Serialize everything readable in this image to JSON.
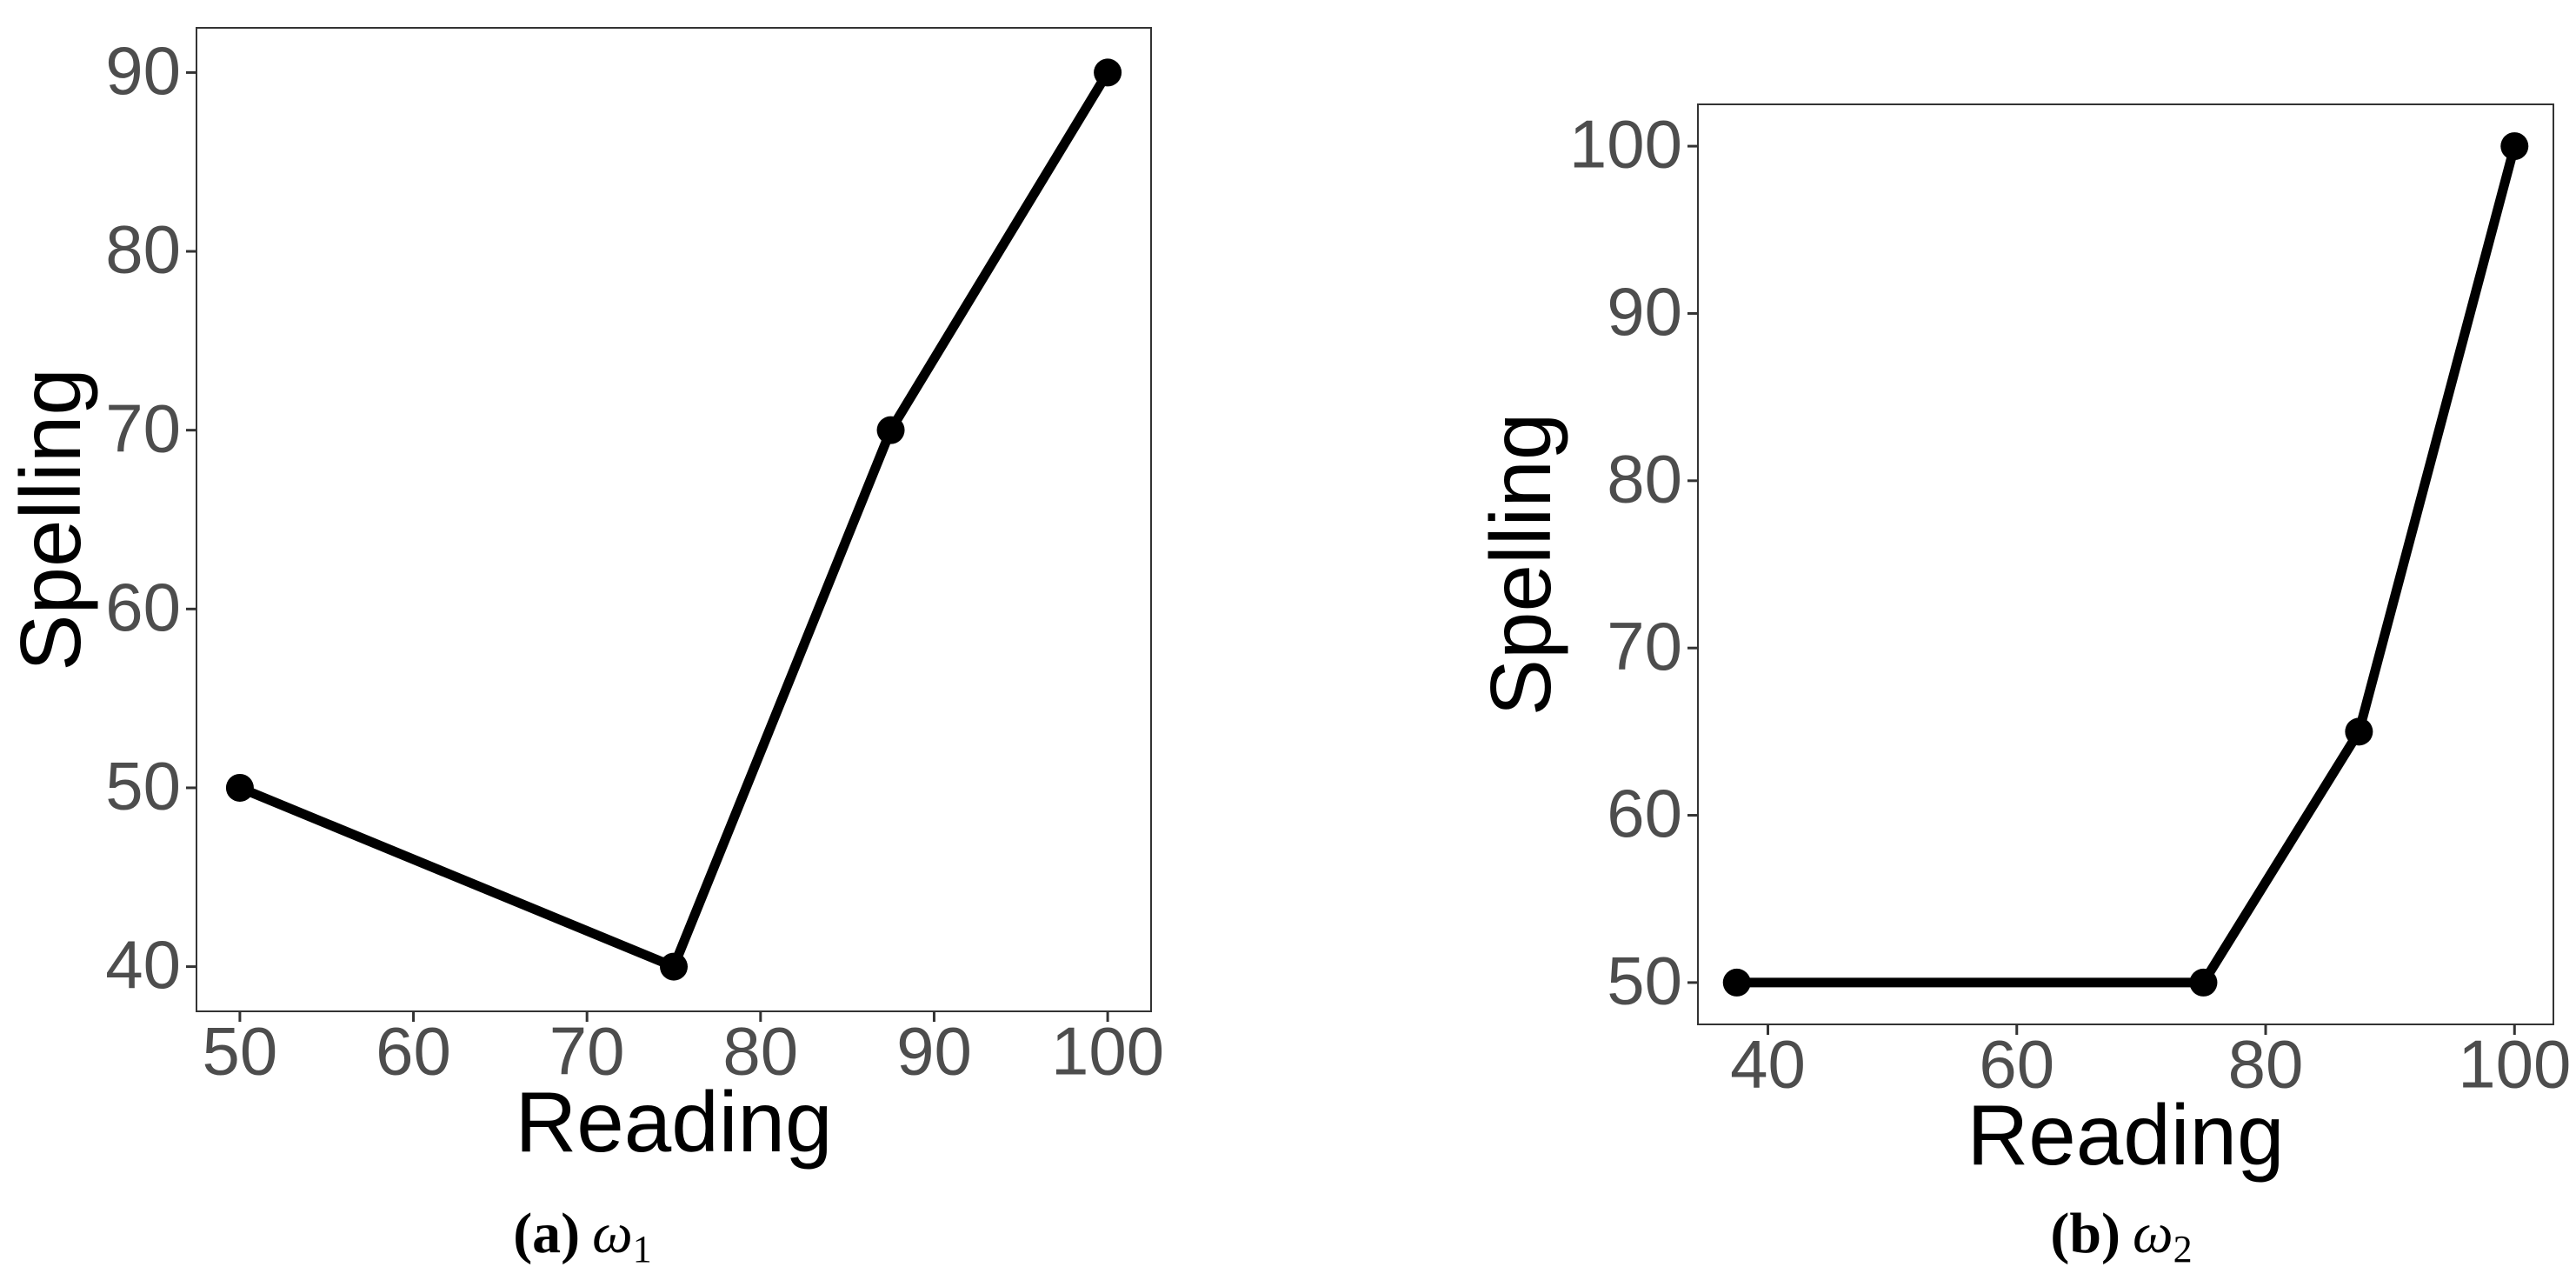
{
  "chart_data": [
    {
      "type": "line",
      "x_label": "Reading",
      "y_label": "Spelling",
      "caption_label": "(a)",
      "caption_symbol": "ω",
      "caption_subscript": "1",
      "x": [
        50,
        75,
        87.5,
        100
      ],
      "series": [
        {
          "color": "#000000",
          "values": [
            50,
            40,
            70,
            90
          ]
        }
      ],
      "xlim": [
        47.5,
        102.5
      ],
      "xticks": [
        50,
        60,
        70,
        80,
        90,
        100
      ],
      "ylim": [
        37.5,
        92.5
      ],
      "yticks": [
        40,
        50,
        60,
        70,
        80,
        90
      ],
      "grid": false
    },
    {
      "type": "line",
      "x_label": "Reading",
      "y_label": "Spelling",
      "caption_label": "(b)",
      "caption_symbol": "ω",
      "caption_subscript": "2",
      "x": [
        37.5,
        75,
        87.5,
        100
      ],
      "series": [
        {
          "color": "#000000",
          "values": [
            50,
            50,
            65,
            100
          ]
        }
      ],
      "xlim": [
        34.375,
        103.125
      ],
      "xticks": [
        40,
        60,
        80,
        100
      ],
      "ylim": [
        47.5,
        102.5
      ],
      "yticks": [
        50,
        60,
        70,
        80,
        90,
        100
      ],
      "grid": false
    }
  ]
}
